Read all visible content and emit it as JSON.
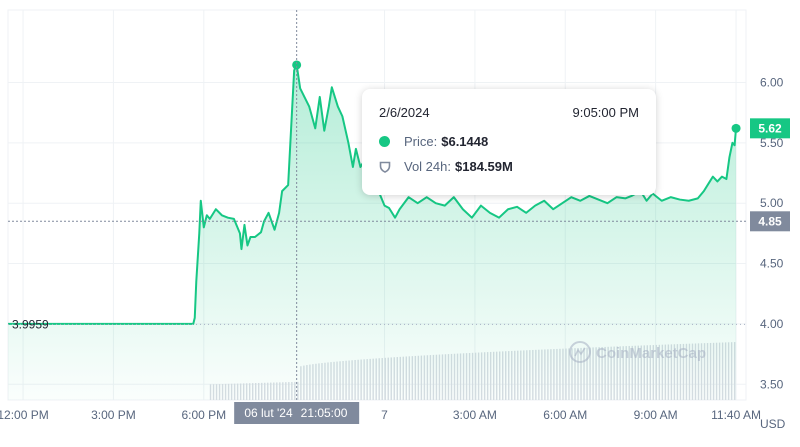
{
  "chart_data": {
    "type": "area",
    "currency": "USD",
    "y_ticks": [
      3.5,
      4.0,
      4.5,
      5.0,
      5.5,
      6.0
    ],
    "y_tick_labels": [
      "3.50",
      "4.00",
      "4.50",
      "5.00",
      "5.50",
      "6.00"
    ],
    "ylim": [
      3.37,
      6.6
    ],
    "x_ticks": [
      {
        "t": 0,
        "label": "12:00 PM"
      },
      {
        "t": 3,
        "label": "3:00 PM"
      },
      {
        "t": 6,
        "label": "6:00 PM"
      },
      {
        "t": 12,
        "label": "7"
      },
      {
        "t": 15,
        "label": "3:00 AM"
      },
      {
        "t": 18,
        "label": "6:00 AM"
      },
      {
        "t": 21,
        "label": "9:00 AM"
      },
      {
        "t": 23.67,
        "label": "11:40 AM"
      }
    ],
    "xlim": [
      -0.5,
      24
    ],
    "open_price": {
      "label": "3.9959",
      "value": 3.9959
    },
    "current_price": {
      "label": "5.62",
      "value": 5.62
    },
    "crosshair": {
      "t": 9.083,
      "value": 4.85,
      "price_label": "4.85",
      "date_label": "06 lut '24",
      "time_label": "21:05:00"
    },
    "series": [
      {
        "type": "price",
        "points": [
          [
            -0.5,
            4.0
          ],
          [
            5.65,
            4.0
          ],
          [
            5.7,
            4.05
          ],
          [
            5.75,
            4.35
          ],
          [
            5.85,
            4.75
          ],
          [
            5.9,
            5.02
          ],
          [
            6.0,
            4.8
          ],
          [
            6.1,
            4.9
          ],
          [
            6.2,
            4.87
          ],
          [
            6.4,
            4.95
          ],
          [
            6.6,
            4.9
          ],
          [
            6.8,
            4.88
          ],
          [
            7.0,
            4.87
          ],
          [
            7.2,
            4.75
          ],
          [
            7.25,
            4.62
          ],
          [
            7.35,
            4.82
          ],
          [
            7.45,
            4.65
          ],
          [
            7.55,
            4.72
          ],
          [
            7.7,
            4.72
          ],
          [
            7.9,
            4.76
          ],
          [
            8.0,
            4.85
          ],
          [
            8.15,
            4.92
          ],
          [
            8.35,
            4.78
          ],
          [
            8.5,
            4.92
          ],
          [
            8.6,
            5.1
          ],
          [
            8.8,
            5.15
          ],
          [
            9.0,
            6.1
          ],
          [
            9.083,
            6.1448
          ],
          [
            9.2,
            5.95
          ],
          [
            9.5,
            5.8
          ],
          [
            9.7,
            5.62
          ],
          [
            9.85,
            5.88
          ],
          [
            10.0,
            5.6
          ],
          [
            10.15,
            5.8
          ],
          [
            10.25,
            5.96
          ],
          [
            10.45,
            5.8
          ],
          [
            10.6,
            5.72
          ],
          [
            10.8,
            5.5
          ],
          [
            10.95,
            5.3
          ],
          [
            11.05,
            5.45
          ],
          [
            11.2,
            5.3
          ],
          [
            11.4,
            5.38
          ],
          [
            11.6,
            5.25
          ],
          [
            11.8,
            5.1
          ],
          [
            12.0,
            4.98
          ],
          [
            12.15,
            4.96
          ],
          [
            12.35,
            4.88
          ],
          [
            12.5,
            4.95
          ],
          [
            12.8,
            5.05
          ],
          [
            13.1,
            5.0
          ],
          [
            13.4,
            5.05
          ],
          [
            13.7,
            5.0
          ],
          [
            14.0,
            4.98
          ],
          [
            14.3,
            5.05
          ],
          [
            14.6,
            4.95
          ],
          [
            14.9,
            4.88
          ],
          [
            15.2,
            4.98
          ],
          [
            15.5,
            4.92
          ],
          [
            15.8,
            4.88
          ],
          [
            16.1,
            4.95
          ],
          [
            16.4,
            4.97
          ],
          [
            16.7,
            4.92
          ],
          [
            17.0,
            4.98
          ],
          [
            17.3,
            5.02
          ],
          [
            17.6,
            4.95
          ],
          [
            17.9,
            5.0
          ],
          [
            18.2,
            5.05
          ],
          [
            18.5,
            5.02
          ],
          [
            18.8,
            5.06
          ],
          [
            19.1,
            5.03
          ],
          [
            19.4,
            5.0
          ],
          [
            19.7,
            5.05
          ],
          [
            20.0,
            5.04
          ],
          [
            20.2,
            5.06
          ],
          [
            20.5,
            5.1
          ],
          [
            20.7,
            5.02
          ],
          [
            20.9,
            5.08
          ],
          [
            21.2,
            5.02
          ],
          [
            21.5,
            5.05
          ],
          [
            21.8,
            5.03
          ],
          [
            22.1,
            5.02
          ],
          [
            22.4,
            5.04
          ],
          [
            22.6,
            5.1
          ],
          [
            22.8,
            5.18
          ],
          [
            22.9,
            5.22
          ],
          [
            23.05,
            5.18
          ],
          [
            23.2,
            5.22
          ],
          [
            23.35,
            5.2
          ],
          [
            23.45,
            5.38
          ],
          [
            23.55,
            5.5
          ],
          [
            23.62,
            5.48
          ],
          [
            23.67,
            5.62
          ]
        ]
      },
      {
        "type": "volume",
        "start_t": 6.2,
        "end_t": 23.67,
        "start_norm": 0.27,
        "jump_t": 9.1,
        "jump_norm": 0.56,
        "end_norm": 1.0
      }
    ]
  },
  "tooltip": {
    "date": "2/6/2024",
    "time": "9:05:00 PM",
    "price_key": "Price:",
    "price_value": "$6.1448",
    "vol_key": "Vol 24h:",
    "vol_value": "$184.59M"
  },
  "watermark": {
    "text": "CoinMarketCap"
  },
  "colors": {
    "line": "#16c784",
    "area_top": "#16c784",
    "grid": "#eff2f5",
    "axis_text": "#58667e",
    "price_box": "#16c784",
    "crosshair_box": "#808a9d",
    "volume": "#d8dce3"
  }
}
